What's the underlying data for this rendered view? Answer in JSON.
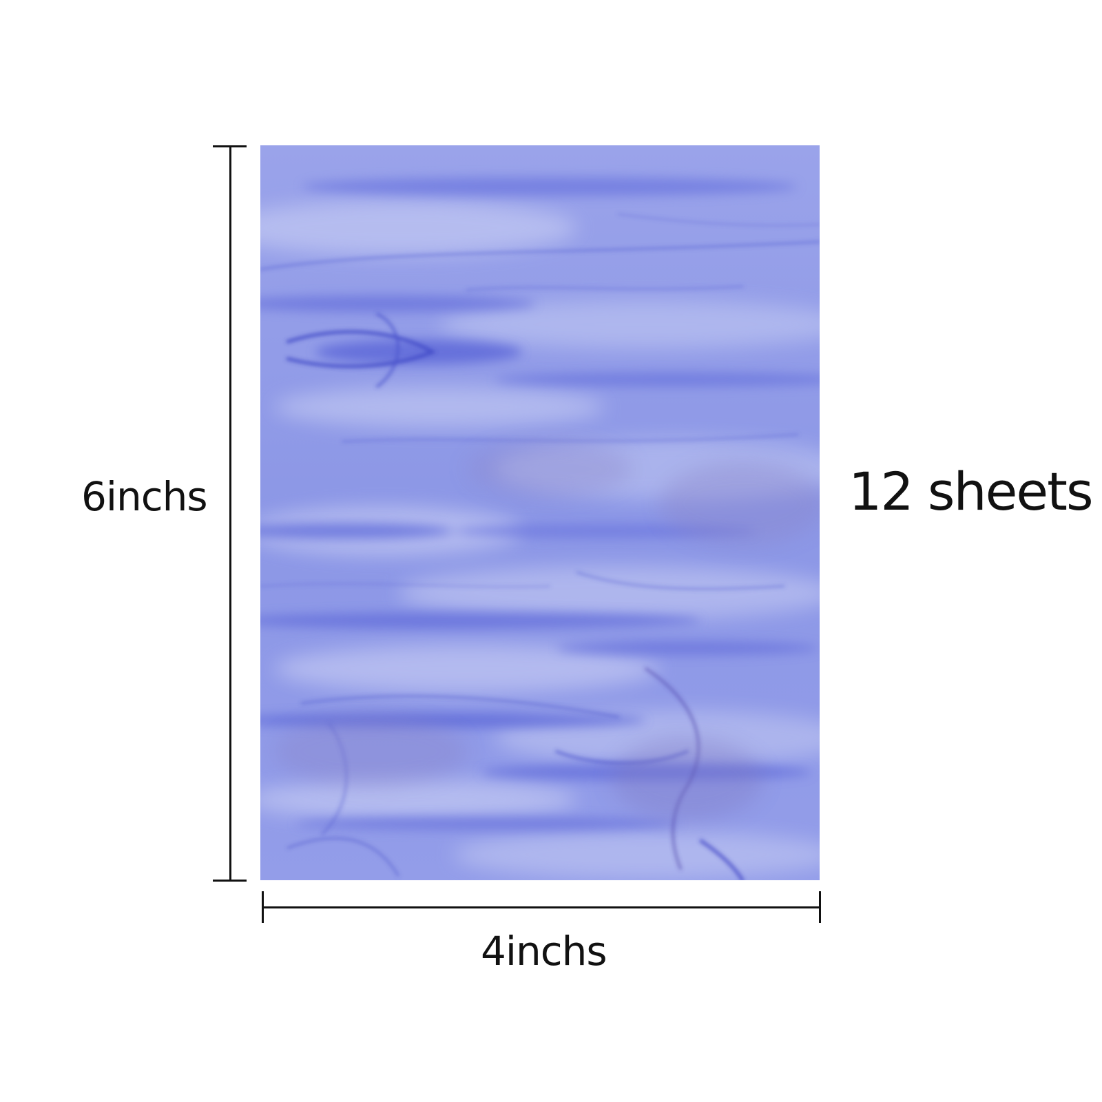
{
  "product": {
    "height_label": "6inchs",
    "width_label": "4inchs",
    "count_label": "12 sheets",
    "glass_colors": {
      "base": "#8f9ae8",
      "light_streak": "#b7beef",
      "dark_streak": "#5a66d8",
      "deep_vein": "#3f47c6"
    }
  }
}
